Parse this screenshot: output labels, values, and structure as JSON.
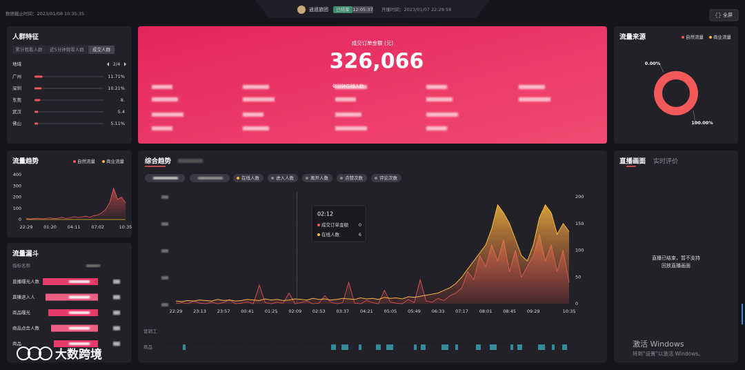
{
  "header": {
    "cutoff": "数据截止时间：2023/01/08 10:35:35",
    "name": "逍遥旅团",
    "status": "已结束",
    "duration": "12:05:37",
    "start": "开播时间：2023/01/07 22:29:58",
    "fullscreen": "全屏"
  },
  "crowd": {
    "title": "人群特征",
    "tabs": [
      "累计观看人群",
      "近5分钟观看人群",
      "成交人群"
    ],
    "region_label": "地域",
    "page": "2/4",
    "regions": [
      {
        "name": "广州",
        "value": 11.71,
        "label": "11.71%"
      },
      {
        "name": "深圳",
        "value": 10.21,
        "label": "10.21%"
      },
      {
        "name": "东莞",
        "value": 8.3,
        "label": "8."
      },
      {
        "name": "武汉",
        "value": 5.4,
        "label": "5.4"
      },
      {
        "name": "佛山",
        "value": 5.11,
        "label": "5.11%"
      }
    ]
  },
  "sales": {
    "title": "成交订单金额 (元)",
    "amount": "326,066",
    "online_label": "每分钟在线人数"
  },
  "funnel": {
    "title": "流量漏斗",
    "header": "指标名称",
    "rows": [
      "直播曝光人数",
      "直播进入人",
      "商品曝光",
      "商品点击人数",
      "商品"
    ]
  },
  "composite": {
    "chips": [
      "在线人数",
      "进入人数",
      "离开人数",
      "点赞次数",
      "评论次数"
    ],
    "tooltip": {
      "time": "02:12",
      "rows": [
        {
          "name": "成交订单金额",
          "value": 0
        },
        {
          "name": "在线人数",
          "value": 6
        }
      ]
    },
    "tracks": [
      "营销工",
      "商品"
    ]
  },
  "live": {
    "tabs": [
      "直播画面",
      "实时评价"
    ],
    "message": [
      "直播已结束，暂不支持",
      "回放直播画面"
    ]
  },
  "watermark": {
    "title": "激活 Windows",
    "subtitle": "转到\"设置\"以激活 Windows。",
    "logo": "大数跨境"
  },
  "chart_data": [
    {
      "type": "pie",
      "title": "流量来源",
      "categories": [
        "自然流量",
        "商业流量"
      ],
      "values": [
        100,
        0
      ],
      "value_labels": [
        "100.00%",
        "0.00%"
      ],
      "colors": [
        "#f0585a",
        "#f5b83d"
      ],
      "donut": true
    },
    {
      "type": "line",
      "title": "流量趋势",
      "categories": [
        "22:29",
        null,
        null,
        null,
        null,
        null,
        "01:20",
        null,
        null,
        null,
        null,
        null,
        "04:11",
        null,
        null,
        null,
        null,
        null,
        "07:02",
        null,
        null,
        null,
        null,
        null,
        null,
        "10:35"
      ],
      "series": [
        {
          "name": "自然流量",
          "color": "#f0585a",
          "values": [
            10,
            5,
            8,
            12,
            6,
            10,
            15,
            8,
            12,
            20,
            10,
            15,
            25,
            18,
            22,
            30,
            20,
            35,
            40,
            60,
            90,
            150,
            280,
            180,
            200,
            150
          ]
        },
        {
          "name": "商业流量",
          "color": "#f5b83d",
          "values": [
            0,
            0,
            0,
            0,
            0,
            0,
            0,
            0,
            0,
            0,
            0,
            0,
            0,
            0,
            0,
            0,
            0,
            0,
            0,
            0,
            0,
            0,
            0,
            0,
            0,
            0
          ]
        }
      ],
      "ylim": [
        0,
        400
      ],
      "yticks": [
        0,
        100,
        200,
        300,
        400
      ],
      "grid": true
    },
    {
      "type": "line",
      "title": "综合趋势",
      "categories": [
        "22:29",
        null,
        null,
        null,
        "23:13",
        null,
        null,
        null,
        "23:57",
        null,
        null,
        null,
        "00:41",
        null,
        null,
        null,
        "01:25",
        null,
        null,
        null,
        "02:09",
        null,
        null,
        null,
        "02:53",
        null,
        null,
        null,
        "03:37",
        null,
        null,
        null,
        "04:21",
        null,
        null,
        null,
        "05:05",
        null,
        null,
        null,
        "05:49",
        null,
        null,
        null,
        "06:33",
        null,
        null,
        null,
        "07:17",
        null,
        null,
        null,
        "08:01",
        null,
        null,
        null,
        "08:45",
        null,
        null,
        null,
        "09:29",
        null,
        null,
        null,
        null,
        null,
        "10:35"
      ],
      "series": [
        {
          "name": "成交订单金额",
          "color": "#f0585a",
          "axis": "y2",
          "values": [
            0,
            2,
            0,
            5,
            1,
            0,
            3,
            0,
            2,
            8,
            0,
            1,
            4,
            0,
            35,
            2,
            0,
            3,
            1,
            20,
            0,
            2,
            5,
            0,
            1,
            15,
            3,
            0,
            2,
            40,
            1,
            0,
            6,
            2,
            0,
            25,
            3,
            1,
            0,
            8,
            2,
            45,
            5,
            3,
            10,
            6,
            15,
            20,
            30,
            60,
            45,
            90,
            70,
            110,
            80,
            120,
            60,
            100,
            50,
            70,
            90,
            130,
            80,
            110,
            60,
            100,
            40
          ]
        },
        {
          "name": "在线人数",
          "color": "#f5b83d",
          "axis": "y2",
          "area": true,
          "values": [
            5,
            4,
            6,
            5,
            7,
            6,
            5,
            8,
            6,
            7,
            5,
            6,
            8,
            7,
            6,
            9,
            7,
            8,
            6,
            7,
            9,
            8,
            7,
            10,
            8,
            9,
            7,
            8,
            10,
            9,
            8,
            11,
            9,
            10,
            8,
            12,
            10,
            11,
            9,
            13,
            12,
            14,
            16,
            18,
            20,
            25,
            30,
            38,
            50,
            65,
            80,
            95,
            110,
            140,
            185,
            170,
            150,
            120,
            90,
            80,
            110,
            160,
            185,
            170,
            130,
            150,
            135
          ]
        }
      ],
      "y2lim": [
        0,
        200
      ],
      "y2ticks": [
        0,
        50,
        100,
        150,
        200
      ],
      "grid": true
    }
  ]
}
